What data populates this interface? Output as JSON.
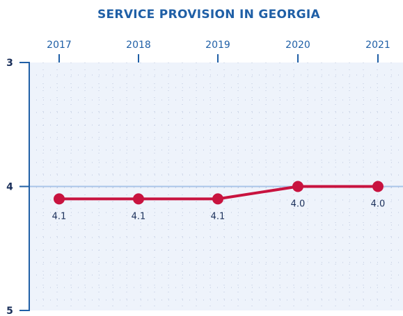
{
  "colors": {
    "title": "#1f5fa6",
    "axis": "#1f5fa6",
    "text": "#1a2f5a",
    "plot_bg": "#eef3fb",
    "grid_dots": "#b9c6de",
    "ref_line": "#a9c4e8",
    "series": "#c8133f"
  },
  "chart_data": {
    "type": "line",
    "title": "SERVICE PROVISION IN GEORGIA",
    "x": [
      "2017",
      "2018",
      "2019",
      "2020",
      "2021"
    ],
    "series": [
      {
        "values": [
          4.1,
          4.1,
          4.1,
          4.0,
          4.0
        ],
        "labels": [
          "4.1",
          "4.1",
          "4.1",
          "4.0",
          "4.0"
        ]
      }
    ],
    "ylim": [
      3,
      5
    ],
    "y_inverted": true,
    "y_ticks": [
      3,
      4,
      5
    ],
    "y_tick_labels": [
      "3",
      "4",
      "5"
    ],
    "x_axis_position": "top",
    "grid": true,
    "reference_line": 4
  }
}
